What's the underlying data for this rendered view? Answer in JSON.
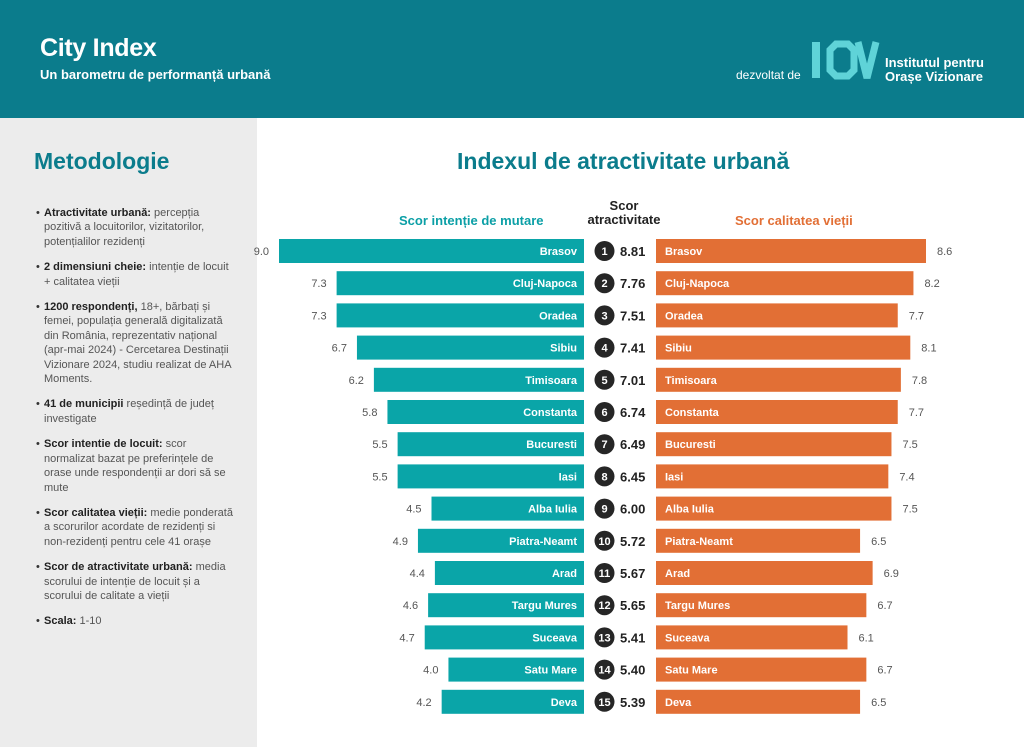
{
  "header": {
    "title": "City Index",
    "subtitle": "Un barometru de performanță urbană",
    "developed_by": "dezvoltat de",
    "logo": "IOV",
    "org_line1": "Institutul pentru",
    "org_line2": "Orașe Vizionare"
  },
  "sidebar": {
    "title": "Metodologie",
    "items": [
      {
        "bold": "Atractivitate urbană:",
        "text": " percepția pozitivă a locuitorilor, vizitatorilor, potențialilor rezidenți"
      },
      {
        "bold": "2 dimensiuni cheie:",
        "text": " intenție de locuit + calitatea vieții"
      },
      {
        "bold": "1200 respondenți,",
        "text": " 18+, bărbați și femei, populația generală digitalizată din România, reprezentativ național (apr-mai 2024) - Cercetarea Destinații Vizionare 2024, studiu realizat de AHA Moments."
      },
      {
        "bold": "41 de municipii",
        "text": " reședință de județ investigate"
      },
      {
        "bold": "Scor intentie de locuit:",
        "text": " scor normalizat bazat pe preferințele de orase unde respondenții ar dori să se mute"
      },
      {
        "bold": "Scor calitatea vieții:",
        "text": " medie ponderată a scorurilor acordate de rezidenți si non-rezidenți pentru cele 41 orașe"
      },
      {
        "bold": "Scor de atractivitate urbană:",
        "text": " media scorului de intenție de locuit și a scorului de calitate a vieții"
      },
      {
        "bold": "Scala:",
        "text": " 1-10"
      }
    ]
  },
  "chart_data": {
    "type": "bar",
    "title": "Indexul de atractivitate urbană",
    "left_label": "Scor intenție de mutare",
    "mid_label_line1": "Scor",
    "mid_label_line2": "atractivitate",
    "right_label": "Scor calitatea vieții",
    "scale": [
      1,
      10
    ],
    "colors": {
      "left": "#0aa5a8",
      "right": "#e26f35",
      "rank": "#262626"
    },
    "categories": [
      "Brasov",
      "Cluj-Napoca",
      "Oradea",
      "Sibiu",
      "Timisoara",
      "Constanta",
      "Bucuresti",
      "Iasi",
      "Alba Iulia",
      "Piatra-Neamt",
      "Arad",
      "Targu Mures",
      "Suceava",
      "Satu Mare",
      "Deva"
    ],
    "ranks": [
      "1",
      "2",
      "3",
      "4",
      "5",
      "6",
      "7",
      "8",
      "9",
      "10",
      "11",
      "12",
      "13",
      "14",
      "15"
    ],
    "series": [
      {
        "name": "Scor intenție de mutare",
        "values": [
          9.0,
          7.3,
          7.3,
          6.7,
          6.2,
          5.8,
          5.5,
          5.5,
          4.5,
          4.9,
          4.4,
          4.6,
          4.7,
          4.0,
          4.2
        ],
        "labels": [
          "9.0",
          "7.3",
          "7.3",
          "6.7",
          "6.2",
          "5.8",
          "5.5",
          "5.5",
          "4.5",
          "4.9",
          "4.4",
          "4.6",
          "4.7",
          "4.0",
          "4.2"
        ]
      },
      {
        "name": "Scor atractivitate",
        "values": [
          8.81,
          7.76,
          7.51,
          7.41,
          7.01,
          6.74,
          6.49,
          6.45,
          6.0,
          5.72,
          5.67,
          5.65,
          5.41,
          5.4,
          5.39
        ],
        "labels": [
          "8.81",
          "7.76",
          "7.51",
          "7.41",
          "7.01",
          "6.74",
          "6.49",
          "6.45",
          "6.00",
          "5.72",
          "5.67",
          "5.65",
          "5.41",
          "5.40",
          "5.39"
        ]
      },
      {
        "name": "Scor calitatea vieții",
        "values": [
          8.6,
          8.2,
          7.7,
          8.1,
          7.8,
          7.7,
          7.5,
          7.4,
          7.5,
          6.5,
          6.9,
          6.7,
          6.1,
          6.7,
          6.5
        ],
        "labels": [
          "8.6",
          "8.2",
          "7.7",
          "8.1",
          "7.8",
          "7.7",
          "7.5",
          "7.4",
          "7.5",
          "6.5",
          "6.9",
          "6.7",
          "6.1",
          "6.7",
          "6.5"
        ]
      }
    ]
  }
}
